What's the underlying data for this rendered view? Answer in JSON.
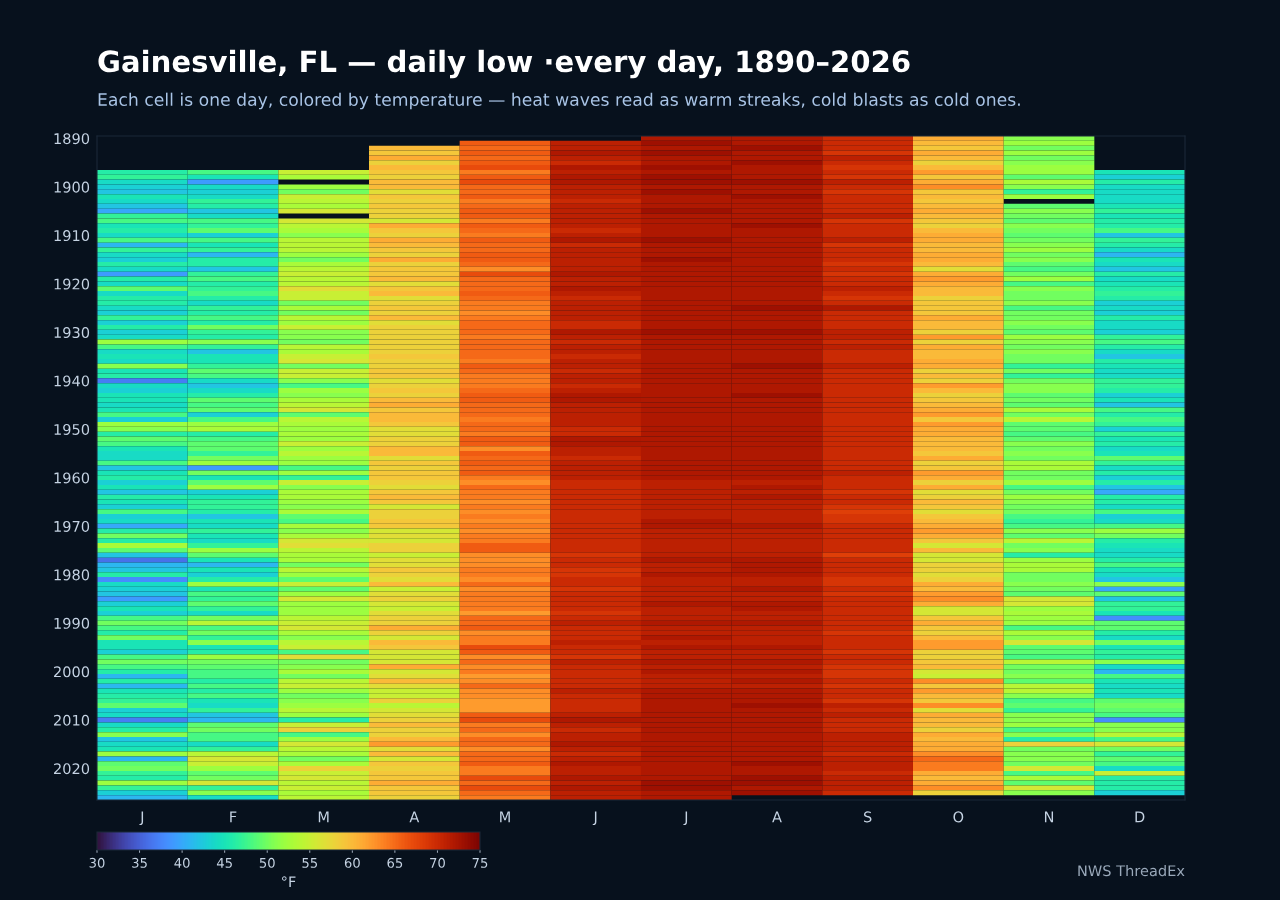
{
  "chart_data": {
    "type": "heatmap",
    "title": "Gainesville, FL — daily low ·every day, 1890–2026",
    "subtitle": "Each cell is one day, colored by temperature — heat waves read as warm streaks, cold blasts as cold ones.",
    "categories": [
      "J",
      "F",
      "M",
      "A",
      "M",
      "J",
      "J",
      "A",
      "S",
      "O",
      "N",
      "D"
    ],
    "y_categories": [
      "1890",
      null,
      null,
      null,
      null,
      null,
      null,
      null,
      null,
      null,
      "1900",
      null,
      null,
      null,
      null,
      null,
      null,
      null,
      null,
      null,
      "1910",
      null,
      null,
      null,
      null,
      null,
      null,
      null,
      null,
      null,
      "1920",
      null,
      null,
      null,
      null,
      null,
      null,
      null,
      null,
      null,
      "1930",
      null,
      null,
      null,
      null,
      null,
      null,
      null,
      null,
      null,
      "1940",
      null,
      null,
      null,
      null,
      null,
      null,
      null,
      null,
      null,
      "1950",
      null,
      null,
      null,
      null,
      null,
      null,
      null,
      null,
      null,
      "1960",
      null,
      null,
      null,
      null,
      null,
      null,
      null,
      null,
      null,
      "1970",
      null,
      null,
      null,
      null,
      null,
      null,
      null,
      null,
      null,
      "1980",
      null,
      null,
      null,
      null,
      null,
      null,
      null,
      null,
      null,
      "1990",
      null,
      null,
      null,
      null,
      null,
      null,
      null,
      null,
      null,
      "2000",
      null,
      null,
      null,
      null,
      null,
      null,
      null,
      null,
      null,
      "2010",
      null,
      null,
      null,
      null,
      null,
      null,
      null,
      null,
      null,
      "2020",
      null,
      null,
      null,
      null,
      null,
      null
    ],
    "cells": [
      [
        null,
        null,
        null,
        null,
        null,
        null,
        72,
        72,
        70,
        61,
        51,
        null
      ],
      [
        null,
        null,
        null,
        null,
        66,
        71,
        73,
        72,
        70,
        60,
        52,
        null
      ],
      [
        null,
        null,
        null,
        60,
        65,
        71,
        72,
        73,
        70,
        59,
        50,
        null
      ],
      [
        null,
        null,
        null,
        59,
        66,
        72,
        73,
        72,
        69,
        61,
        52,
        null
      ],
      [
        null,
        null,
        null,
        61,
        65,
        71,
        72,
        72,
        71,
        60,
        50,
        null
      ],
      [
        null,
        null,
        null,
        58,
        66,
        70,
        72,
        73,
        70,
        58,
        51,
        null
      ],
      [
        null,
        null,
        null,
        60,
        67,
        72,
        73,
        72,
        69,
        60,
        52,
        null
      ],
      [
        46,
        48,
        55,
        59,
        64,
        71,
        72,
        72,
        70,
        62,
        52,
        45
      ],
      [
        47,
        45,
        53,
        58,
        66,
        72,
        73,
        72,
        69,
        59,
        49,
        43
      ],
      [
        44,
        39,
        null,
        60,
        67,
        72,
        73,
        73,
        71,
        61,
        53,
        46
      ],
      [
        43,
        44,
        52,
        60,
        65,
        71,
        72,
        72,
        70,
        63,
        51,
        44
      ],
      [
        42,
        43,
        50,
        57,
        65,
        71,
        73,
        72,
        69,
        59,
        47,
        44
      ],
      [
        45,
        44,
        55,
        59,
        66,
        71,
        72,
        73,
        70,
        60,
        52,
        44
      ],
      [
        44,
        47,
        54,
        58,
        64,
        70,
        72,
        72,
        70,
        59,
        null,
        44
      ],
      [
        42,
        46,
        53,
        59,
        65,
        71,
        72,
        72,
        70,
        60,
        49,
        45
      ],
      [
        40,
        42,
        56,
        58,
        66,
        71,
        73,
        72,
        70,
        61,
        51,
        47
      ],
      [
        47,
        44,
        null,
        58,
        66,
        71,
        72,
        72,
        71,
        60,
        50,
        45
      ],
      [
        48,
        48,
        56,
        56,
        64,
        71,
        72,
        72,
        69,
        59,
        49,
        46
      ],
      [
        45,
        47,
        54,
        61,
        66,
        71,
        72,
        73,
        70,
        58,
        51,
        46
      ],
      [
        46,
        49,
        53,
        59,
        65,
        70,
        72,
        72,
        70,
        60,
        50,
        48
      ],
      [
        44,
        43,
        51,
        58,
        64,
        71,
        72,
        72,
        70,
        61,
        49,
        42
      ],
      [
        48,
        48,
        54,
        61,
        66,
        72,
        73,
        72,
        71,
        61,
        50,
        47
      ],
      [
        41,
        45,
        54,
        60,
        65,
        70,
        72,
        72,
        69,
        60,
        51,
        46
      ],
      [
        47,
        47,
        54,
        59,
        65,
        71,
        72,
        72,
        70,
        60,
        52,
        44
      ],
      [
        44,
        41,
        52,
        58,
        66,
        71,
        72,
        72,
        70,
        61,
        50,
        41
      ],
      [
        43,
        46,
        50,
        61,
        66,
        71,
        73,
        72,
        70,
        61,
        51,
        45
      ],
      [
        46,
        46,
        53,
        58,
        65,
        71,
        72,
        72,
        69,
        60,
        49,
        44
      ],
      [
        44,
        42,
        54,
        59,
        63,
        71,
        72,
        72,
        70,
        57,
        48,
        42
      ],
      [
        39,
        47,
        55,
        59,
        67,
        72,
        72,
        72,
        69,
        61,
        50,
        46
      ],
      [
        46,
        48,
        54,
        60,
        65,
        71,
        72,
        72,
        70,
        62,
        52,
        44
      ],
      [
        44,
        46,
        54,
        57,
        65,
        71,
        72,
        72,
        70,
        61,
        48,
        45
      ],
      [
        49,
        47,
        57,
        59,
        65,
        72,
        72,
        72,
        71,
        60,
        51,
        46
      ],
      [
        44,
        48,
        55,
        60,
        66,
        71,
        72,
        72,
        70,
        60,
        50,
        47
      ],
      [
        46,
        46,
        55,
        57,
        65,
        70,
        72,
        72,
        69,
        58,
        50,
        46
      ],
      [
        46,
        44,
        50,
        58,
        64,
        71,
        72,
        72,
        70,
        59,
        51,
        43
      ],
      [
        44,
        47,
        53,
        59,
        64,
        71,
        72,
        73,
        72,
        59,
        48,
        44
      ],
      [
        43,
        46,
        50,
        58,
        63,
        71,
        72,
        72,
        70,
        59,
        50,
        43
      ],
      [
        47,
        48,
        54,
        60,
        64,
        71,
        72,
        72,
        70,
        61,
        50,
        46
      ],
      [
        43,
        46,
        52,
        57,
        65,
        70,
        72,
        72,
        70,
        60,
        51,
        44
      ],
      [
        46,
        50,
        55,
        58,
        65,
        70,
        72,
        72,
        70,
        60,
        50,
        44
      ],
      [
        43,
        47,
        51,
        58,
        65,
        72,
        73,
        73,
        71,
        58,
        49,
        43
      ],
      [
        44,
        46,
        51,
        58,
        64,
        71,
        72,
        72,
        71,
        62,
        52,
        47
      ],
      [
        52,
        51,
        50,
        58,
        65,
        70,
        72,
        72,
        70,
        58,
        51,
        48
      ],
      [
        48,
        47,
        54,
        58,
        65,
        71,
        72,
        72,
        71,
        61,
        50,
        46
      ],
      [
        44,
        42,
        53,
        58,
        65,
        71,
        72,
        72,
        70,
        60,
        51,
        44
      ],
      [
        45,
        45,
        55,
        59,
        65,
        70,
        72,
        72,
        70,
        60,
        50,
        42
      ],
      [
        44,
        45,
        56,
        58,
        64,
        71,
        72,
        72,
        70,
        61,
        50,
        46
      ],
      [
        51,
        47,
        50,
        58,
        66,
        71,
        72,
        73,
        71,
        61,
        47,
        45
      ],
      [
        45,
        49,
        55,
        59,
        65,
        70,
        72,
        72,
        70,
        58,
        50,
        44
      ],
      [
        46,
        48,
        55,
        59,
        64,
        71,
        72,
        72,
        70,
        60,
        47,
        44
      ],
      [
        37,
        44,
        51,
        57,
        64,
        71,
        72,
        72,
        70,
        58,
        50,
        47
      ],
      [
        44,
        42,
        48,
        58,
        64,
        70,
        72,
        72,
        70,
        62,
        51,
        47
      ],
      [
        43,
        44,
        52,
        59,
        65,
        71,
        72,
        72,
        70,
        60,
        51,
        46
      ],
      [
        45,
        46,
        51,
        58,
        66,
        72,
        72,
        73,
        70,
        58,
        49,
        43
      ],
      [
        45,
        49,
        53,
        60,
        66,
        72,
        72,
        72,
        70,
        59,
        50,
        45
      ],
      [
        44,
        48,
        54,
        61,
        65,
        71,
        72,
        72,
        70,
        60,
        49,
        42
      ],
      [
        45,
        49,
        56,
        59,
        65,
        71,
        72,
        72,
        70,
        61,
        53,
        48
      ],
      [
        48,
        43,
        49,
        60,
        65,
        71,
        72,
        72,
        70,
        62,
        50,
        46
      ],
      [
        43,
        48,
        54,
        60,
        64,
        71,
        72,
        72,
        70,
        59,
        54,
        48
      ],
      [
        52,
        52,
        53,
        59,
        65,
        71,
        72,
        72,
        70,
        62,
        49,
        47
      ],
      [
        51,
        53,
        52,
        57,
        65,
        70,
        72,
        72,
        70,
        61,
        49,
        43
      ],
      [
        46,
        46,
        53,
        57,
        64,
        70,
        72,
        72,
        70,
        61,
        48,
        47
      ],
      [
        49,
        48,
        52,
        58,
        66,
        72,
        72,
        72,
        70,
        60,
        49,
        45
      ],
      [
        48,
        49,
        55,
        58,
        66,
        72,
        72,
        72,
        70,
        60,
        51,
        46
      ],
      [
        45,
        49,
        52,
        60,
        63,
        71,
        72,
        72,
        70,
        60,
        50,
        44
      ],
      [
        44,
        47,
        54,
        60,
        66,
        71,
        72,
        72,
        70,
        59,
        51,
        45
      ],
      [
        44,
        50,
        52,
        57,
        65,
        70,
        72,
        72,
        70,
        61,
        50,
        49
      ],
      [
        48,
        52,
        52,
        59,
        66,
        71,
        72,
        72,
        70,
        58,
        53,
        47
      ],
      [
        42,
        39,
        48,
        58,
        65,
        71,
        72,
        72,
        70,
        59,
        53,
        44
      ],
      [
        45,
        50,
        52,
        59,
        66,
        71,
        72,
        72,
        71,
        62,
        50,
        46
      ],
      [
        46,
        45,
        47,
        59,
        64,
        71,
        72,
        72,
        70,
        61,
        50,
        43
      ],
      [
        43,
        49,
        55,
        58,
        63,
        70,
        71,
        71,
        70,
        58,
        52,
        46
      ],
      [
        45,
        52,
        51,
        57,
        65,
        70,
        71,
        72,
        70,
        61,
        48,
        42
      ],
      [
        42,
        43,
        53,
        59,
        64,
        70,
        71,
        71,
        69,
        57,
        50,
        40
      ],
      [
        46,
        45,
        53,
        60,
        64,
        70,
        71,
        72,
        70,
        58,
        52,
        46
      ],
      [
        45,
        47,
        52,
        59,
        63,
        70,
        71,
        71,
        70,
        60,
        51,
        46
      ],
      [
        43,
        47,
        51,
        56,
        64,
        70,
        71,
        71,
        69,
        59,
        50,
        44
      ],
      [
        48,
        46,
        53,
        58,
        63,
        70,
        71,
        71,
        68,
        57,
        50,
        48
      ],
      [
        43,
        42,
        49,
        58,
        64,
        70,
        71,
        71,
        69,
        59,
        48,
        43
      ],
      [
        44,
        45,
        48,
        59,
        63,
        70,
        72,
        71,
        69,
        60,
        47,
        44
      ],
      [
        40,
        44,
        53,
        59,
        64,
        70,
        72,
        72,
        70,
        61,
        48,
        48
      ],
      [
        46,
        47,
        51,
        56,
        63,
        70,
        71,
        71,
        70,
        62,
        51,
        52
      ],
      [
        50,
        45,
        53,
        57,
        64,
        70,
        71,
        71,
        70,
        61,
        49,
        50
      ],
      [
        46,
        44,
        56,
        56,
        64,
        70,
        71,
        71,
        70,
        59,
        54,
        46
      ],
      [
        53,
        47,
        57,
        58,
        66,
        70,
        71,
        71,
        70,
        56,
        50,
        45
      ],
      [
        49,
        52,
        54,
        58,
        66,
        70,
        71,
        71,
        70,
        60,
        51,
        44
      ],
      [
        42,
        49,
        53,
        55,
        63,
        69,
        71,
        71,
        68,
        56,
        46,
        44
      ],
      [
        36,
        45,
        53,
        57,
        63,
        70,
        72,
        72,
        70,
        56,
        52,
        46
      ],
      [
        41,
        41,
        50,
        57,
        63,
        70,
        71,
        72,
        70,
        58,
        53,
        48
      ],
      [
        42,
        45,
        54,
        59,
        64,
        69,
        71,
        72,
        70,
        58,
        53,
        45
      ],
      [
        46,
        43,
        52,
        58,
        64,
        69,
        72,
        72,
        70,
        57,
        50,
        44
      ],
      [
        38,
        46,
        49,
        57,
        63,
        70,
        71,
        71,
        69,
        58,
        50,
        42
      ],
      [
        44,
        52,
        55,
        60,
        65,
        70,
        71,
        71,
        69,
        61,
        51,
        51
      ],
      [
        43,
        45,
        49,
        55,
        63,
        69,
        71,
        72,
        70,
        60,
        50,
        40
      ],
      [
        42,
        48,
        52,
        57,
        64,
        70,
        71,
        71,
        69,
        62,
        49,
        49
      ],
      [
        39,
        47,
        56,
        58,
        64,
        70,
        71,
        71,
        70,
        63,
        56,
        42
      ],
      [
        43,
        49,
        52,
        56,
        64,
        70,
        72,
        72,
        70,
        61,
        56,
        47
      ],
      [
        45,
        47,
        52,
        55,
        64,
        70,
        71,
        72,
        70,
        56,
        52,
        47
      ],
      [
        43,
        44,
        52,
        57,
        62,
        69,
        71,
        71,
        70,
        56,
        53,
        45
      ],
      [
        48,
        50,
        54,
        58,
        65,
        70,
        71,
        71,
        70,
        59,
        52,
        38
      ],
      [
        50,
        54,
        55,
        58,
        65,
        71,
        72,
        72,
        70,
        61,
        52,
        49
      ],
      [
        48,
        48,
        56,
        61,
        66,
        70,
        71,
        71,
        70,
        59,
        48,
        49
      ],
      [
        46,
        50,
        53,
        58,
        63,
        70,
        71,
        71,
        69,
        58,
        53,
        46
      ],
      [
        50,
        47,
        51,
        56,
        64,
        70,
        72,
        71,
        70,
        60,
        51,
        44
      ],
      [
        45,
        51,
        54,
        60,
        64,
        71,
        71,
        71,
        70,
        62,
        56,
        50
      ],
      [
        45,
        45,
        55,
        59,
        67,
        70,
        72,
        72,
        70,
        62,
        49,
        45
      ],
      [
        43,
        46,
        48,
        56,
        66,
        70,
        71,
        71,
        69,
        58,
        49,
        47
      ],
      [
        48,
        52,
        57,
        56,
        63,
        69,
        71,
        71,
        70,
        58,
        48,
        46
      ],
      [
        50,
        50,
        50,
        56,
        65,
        71,
        72,
        72,
        70,
        59,
        54,
        51
      ],
      [
        48,
        49,
        51,
        61,
        63,
        70,
        71,
        71,
        69,
        60,
        50,
        44
      ],
      [
        46,
        48,
        53,
        56,
        64,
        70,
        72,
        72,
        69,
        56,
        50,
        41
      ],
      [
        41,
        48,
        50,
        57,
        62,
        70,
        71,
        71,
        69,
        55,
        51,
        48
      ],
      [
        46,
        46,
        54,
        60,
        63,
        70,
        71,
        72,
        70,
        63,
        49,
        45
      ],
      [
        41,
        48,
        55,
        57,
        65,
        70,
        71,
        71,
        69,
        59,
        54,
        44
      ],
      [
        45,
        46,
        52,
        55,
        63,
        71,
        72,
        72,
        70,
        62,
        54,
        45
      ],
      [
        46,
        48,
        50,
        55,
        63,
        70,
        72,
        72,
        70,
        60,
        51,
        44
      ],
      [
        47,
        45,
        51,
        58,
        62,
        70,
        72,
        72,
        69,
        59,
        48,
        49
      ],
      [
        49,
        44,
        52,
        54,
        62,
        70,
        72,
        73,
        71,
        63,
        49,
        50
      ],
      [
        43,
        47,
        54,
        56,
        62,
        70,
        72,
        72,
        70,
        57,
        47,
        49
      ],
      [
        44,
        42,
        52,
        57,
        66,
        71,
        72,
        72,
        71,
        61,
        51,
        48
      ],
      [
        37,
        41,
        46,
        58,
        67,
        72,
        72,
        72,
        70,
        60,
        51,
        38
      ],
      [
        44,
        49,
        55,
        60,
        64,
        71,
        72,
        72,
        70,
        60,
        52,
        51
      ],
      [
        46,
        50,
        58,
        58,
        65,
        70,
        72,
        72,
        70,
        58,
        48,
        51
      ],
      [
        51,
        48,
        48,
        58,
        63,
        71,
        72,
        72,
        71,
        61,
        51,
        54
      ],
      [
        42,
        48,
        52,
        60,
        65,
        71,
        72,
        72,
        71,
        60,
        46,
        48
      ],
      [
        44,
        44,
        56,
        62,
        65,
        72,
        72,
        72,
        71,
        61,
        58,
        56
      ],
      [
        45,
        47,
        54,
        57,
        63,
        71,
        72,
        72,
        71,
        61,
        50,
        50
      ],
      [
        52,
        54,
        53,
        60,
        65,
        70,
        72,
        72,
        70,
        63,
        51,
        47
      ],
      [
        41,
        56,
        50,
        56,
        65,
        71,
        72,
        72,
        71,
        65,
        51,
        49
      ],
      [
        49,
        55,
        53,
        59,
        66,
        72,
        72,
        73,
        71,
        64,
        50,
        48
      ],
      [
        50,
        52,
        58,
        58,
        64,
        71,
        72,
        72,
        71,
        64,
        56,
        44
      ],
      [
        47,
        49,
        55,
        59,
        64,
        71,
        72,
        72,
        70,
        61,
        48,
        55
      ],
      [
        46,
        50,
        56,
        59,
        67,
        72,
        72,
        73,
        71,
        60,
        53,
        46
      ],
      [
        52,
        56,
        54,
        61,
        65,
        71,
        73,
        73,
        71,
        61,
        49,
        46
      ],
      [
        47,
        47,
        55,
        59,
        67,
        72,
        73,
        72,
        71,
        63,
        56,
        46
      ],
      [
        43,
        51,
        53,
        59,
        65,
        71,
        72,
        73,
        70,
        58,
        51,
        43
      ],
      [
        41,
        44,
        54,
        58,
        64,
        71,
        72,
        null,
        null,
        null,
        null,
        null
      ]
    ],
    "clim": [
      30,
      75
    ],
    "cticks": [
      30,
      35,
      40,
      45,
      50,
      55,
      60,
      65,
      70,
      75
    ],
    "clabel": "°F",
    "annotations": [
      "NWS ThreadEx"
    ]
  }
}
